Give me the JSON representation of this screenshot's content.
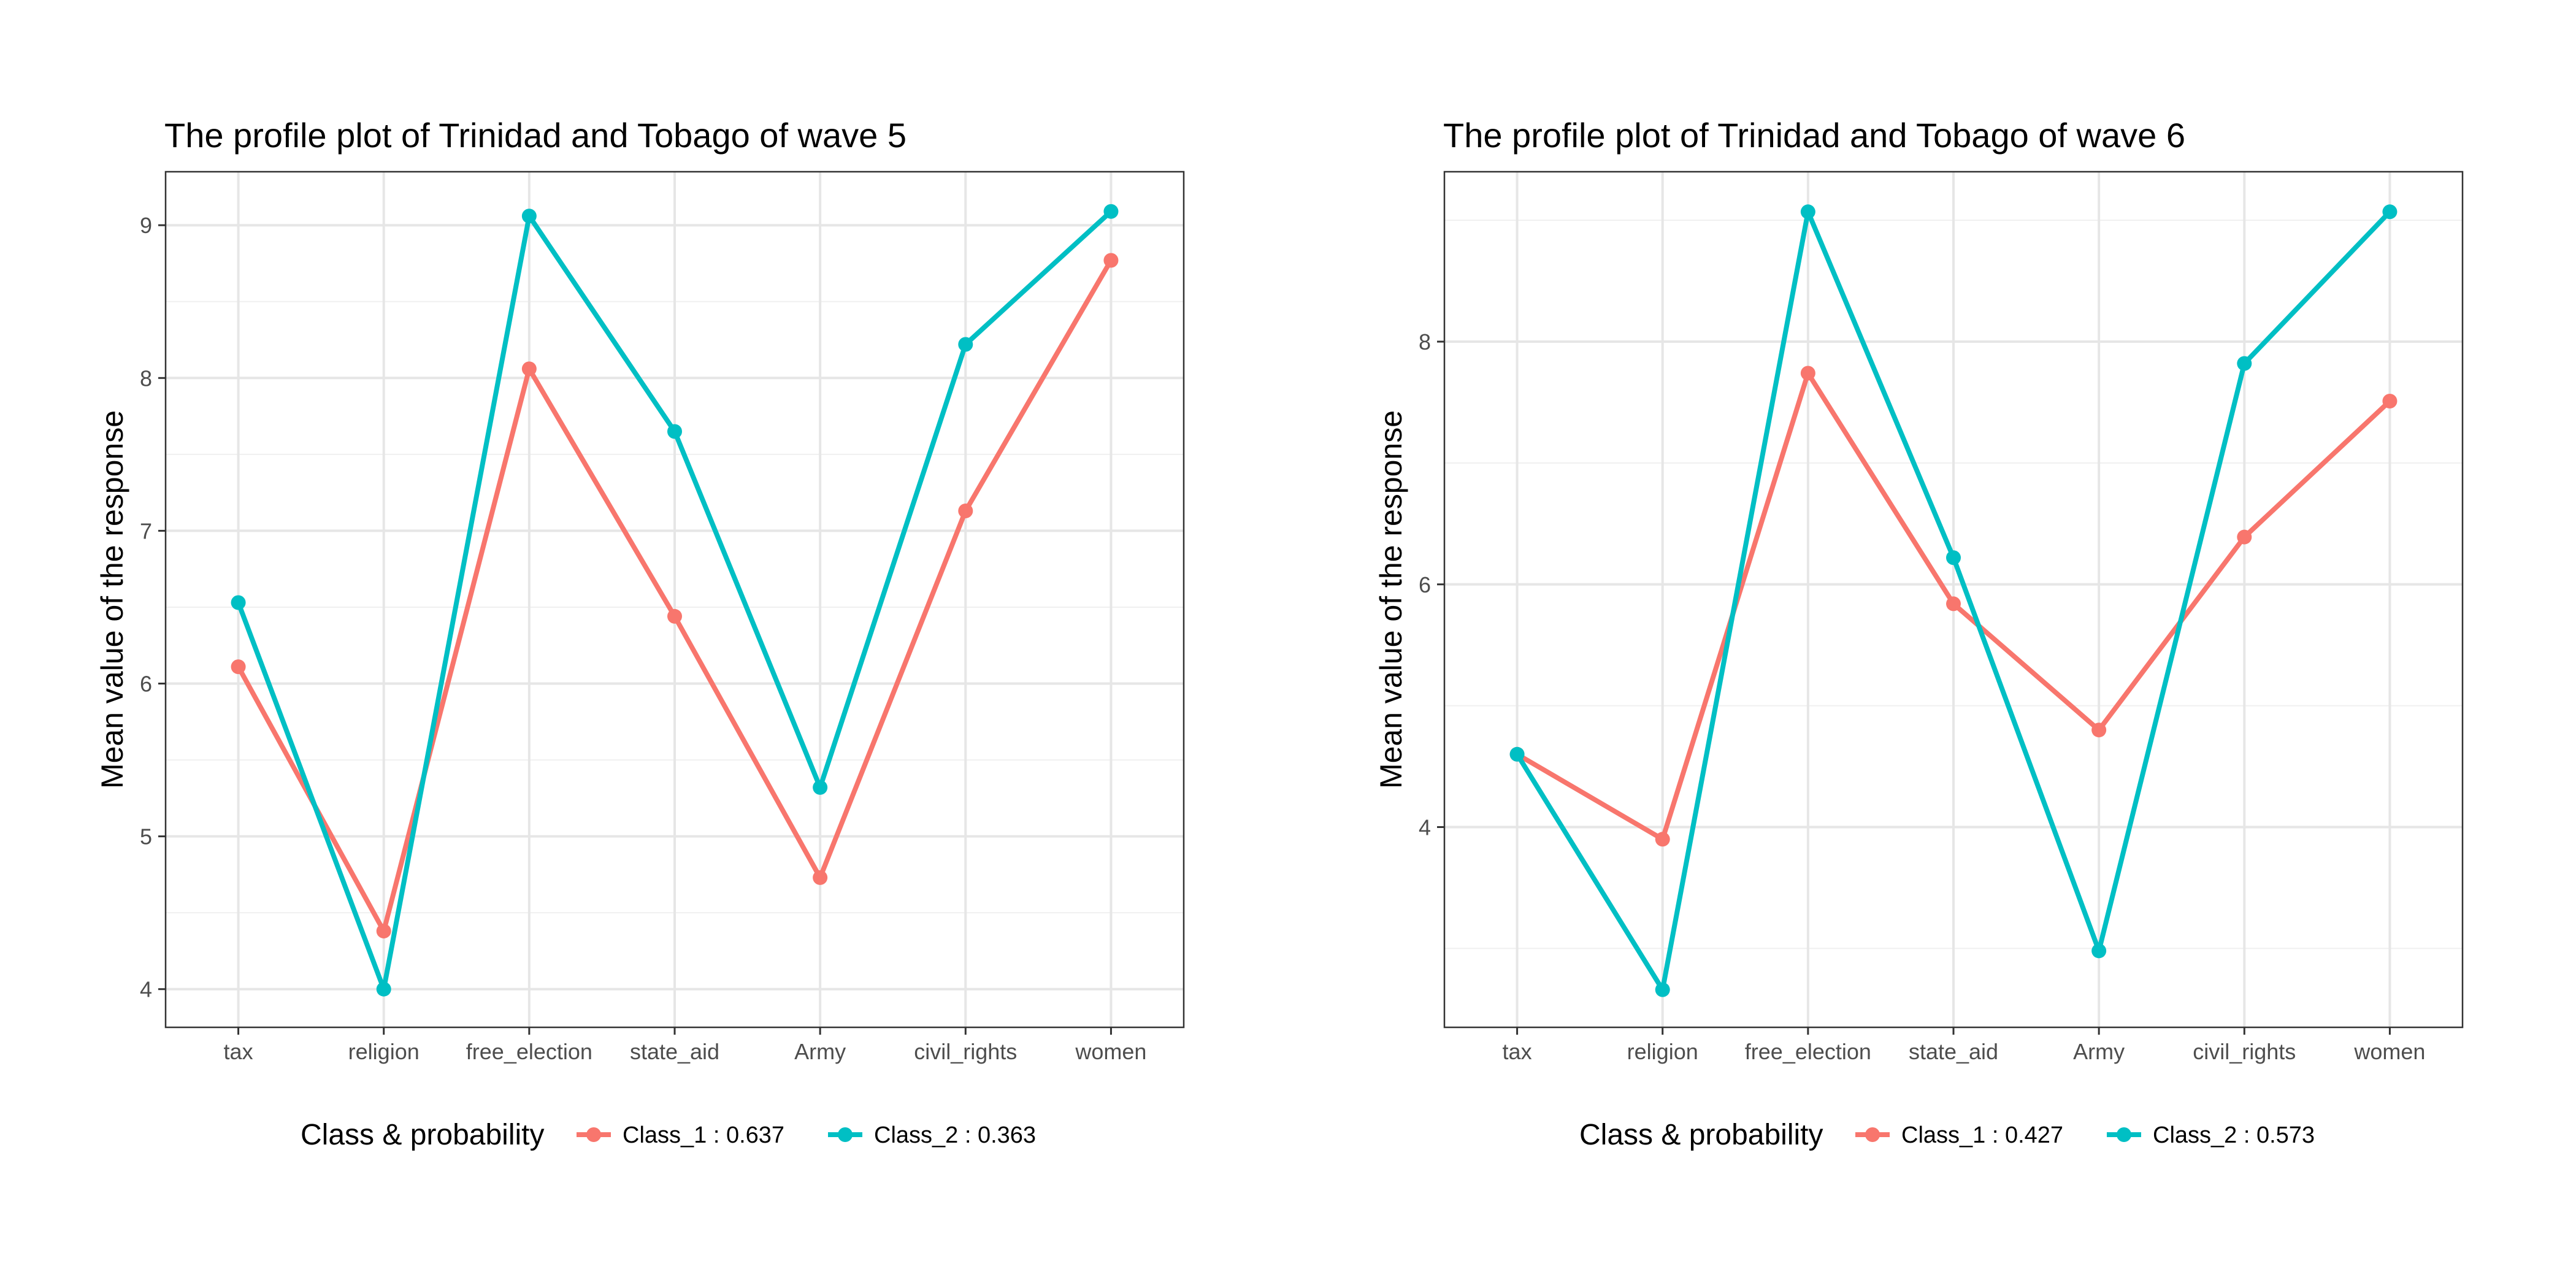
{
  "chart_data": [
    {
      "type": "line",
      "title": "The profile plot of Trinidad and Tobago of wave 5",
      "xlabel": "",
      "ylabel": "Mean value of the response",
      "categories": [
        "tax",
        "religion",
        "free_election",
        "state_aid",
        "Army",
        "civil_rights",
        "women"
      ],
      "ylim": [
        3.75,
        9.35
      ],
      "yticks": [
        4,
        5,
        6,
        7,
        8,
        9
      ],
      "grid": true,
      "legend_title": "Class & probability",
      "legend_position": "bottom",
      "series": [
        {
          "name": "Class_1 : 0.637",
          "color": "#F8766D",
          "values": [
            6.11,
            4.38,
            8.06,
            6.44,
            4.73,
            7.13,
            8.77
          ]
        },
        {
          "name": "Class_2 : 0.363",
          "color": "#00BFC4",
          "values": [
            6.53,
            4.0,
            9.06,
            7.65,
            5.32,
            8.22,
            9.09
          ]
        }
      ]
    },
    {
      "type": "line",
      "title": "The profile plot of Trinidad and Tobago of wave 6",
      "xlabel": "",
      "ylabel": "Mean value of the response",
      "categories": [
        "tax",
        "religion",
        "free_election",
        "state_aid",
        "Army",
        "civil_rights",
        "women"
      ],
      "ylim": [
        2.35,
        9.4
      ],
      "yticks": [
        4,
        6,
        8
      ],
      "grid": true,
      "legend_title": "Class & probability",
      "legend_position": "bottom",
      "series": [
        {
          "name": "Class_1 : 0.427",
          "color": "#F8766D",
          "values": [
            4.6,
            3.9,
            7.74,
            5.84,
            4.8,
            6.39,
            7.51
          ]
        },
        {
          "name": "Class_2 : 0.573",
          "color": "#00BFC4",
          "values": [
            4.6,
            2.66,
            9.07,
            6.22,
            2.98,
            7.82,
            9.07
          ]
        }
      ]
    }
  ]
}
